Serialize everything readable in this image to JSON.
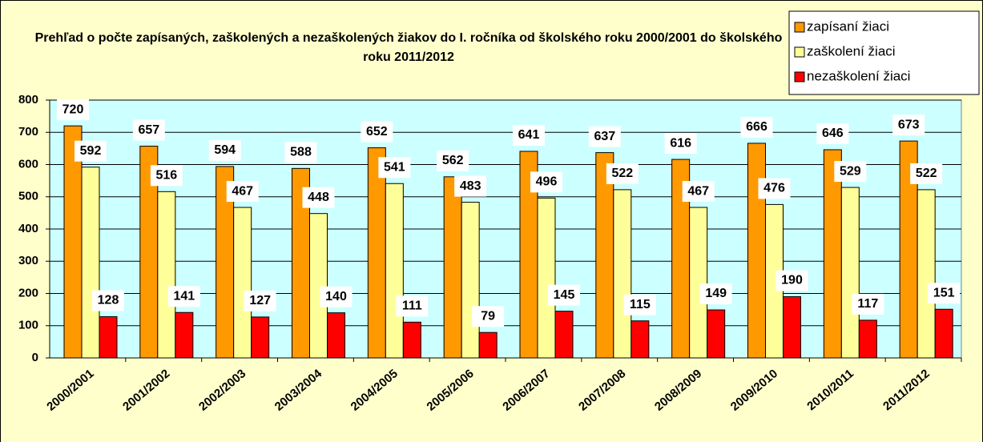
{
  "chart_data": {
    "type": "bar",
    "title": "Prehľad o počte zapísaných, zaškolených a nezaškolených žiakov do I. ročníka od školského roku 2000/2001 do školského roku 2011/2012",
    "categories": [
      "2000/2001",
      "2001/2002",
      "2002/2003",
      "2003/2004",
      "2004/2005",
      "2005/2006",
      "2006/2007",
      "2007/2008",
      "2008/2009",
      "2009/2010",
      "2010/2011",
      "2011/2012"
    ],
    "series": [
      {
        "name": "zapísaní žiaci",
        "color": "#ff9900",
        "values": [
          720,
          657,
          594,
          588,
          652,
          562,
          641,
          637,
          616,
          666,
          646,
          673
        ]
      },
      {
        "name": "zaškolení žiaci",
        "color": "#ffff99",
        "values": [
          592,
          516,
          467,
          448,
          541,
          483,
          496,
          522,
          467,
          476,
          529,
          522
        ]
      },
      {
        "name": "nezaškolení žiaci",
        "color": "#ff0000",
        "values": [
          128,
          141,
          127,
          140,
          111,
          79,
          145,
          115,
          149,
          190,
          117,
          151
        ]
      }
    ],
    "ylim": [
      0,
      800
    ],
    "yticks": [
      0,
      100,
      200,
      300,
      400,
      500,
      600,
      700,
      800
    ],
    "grid": true,
    "legend": "top-right"
  }
}
